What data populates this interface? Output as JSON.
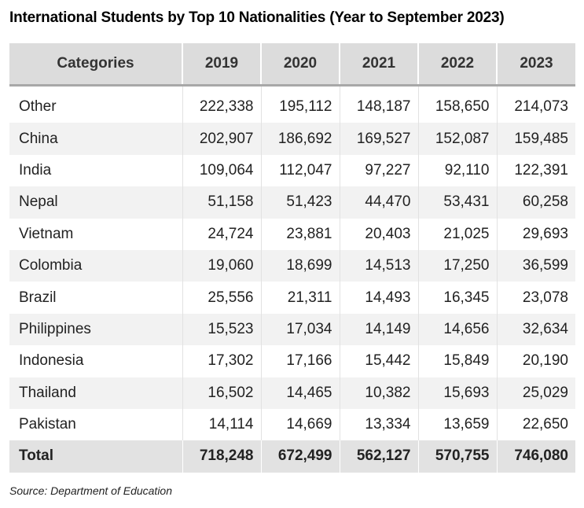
{
  "chart_data": {
    "type": "table",
    "title": "International Students by Top 10 Nationalities (Year to September 2023)",
    "columns": [
      "Categories",
      "2019",
      "2020",
      "2021",
      "2022",
      "2023"
    ],
    "rows": [
      {
        "category": "Other",
        "values": [
          "222,338",
          "195,112",
          "148,187",
          "158,650",
          "214,073"
        ]
      },
      {
        "category": "China",
        "values": [
          "202,907",
          "186,692",
          "169,527",
          "152,087",
          "159,485"
        ]
      },
      {
        "category": "India",
        "values": [
          "109,064",
          "112,047",
          "97,227",
          "92,110",
          "122,391"
        ]
      },
      {
        "category": "Nepal",
        "values": [
          "51,158",
          "51,423",
          "44,470",
          "53,431",
          "60,258"
        ]
      },
      {
        "category": "Vietnam",
        "values": [
          "24,724",
          "23,881",
          "20,403",
          "21,025",
          "29,693"
        ]
      },
      {
        "category": "Colombia",
        "values": [
          "19,060",
          "18,699",
          "14,513",
          "17,250",
          "36,599"
        ]
      },
      {
        "category": "Brazil",
        "values": [
          "25,556",
          "21,311",
          "14,493",
          "16,345",
          "23,078"
        ]
      },
      {
        "category": "Philippines",
        "values": [
          "15,523",
          "17,034",
          "14,149",
          "14,656",
          "32,634"
        ]
      },
      {
        "category": "Indonesia",
        "values": [
          "17,302",
          "17,166",
          "15,442",
          "15,849",
          "20,190"
        ]
      },
      {
        "category": "Thailand",
        "values": [
          "16,502",
          "14,465",
          "10,382",
          "15,693",
          "25,029"
        ]
      },
      {
        "category": "Pakistan",
        "values": [
          "14,114",
          "14,669",
          "13,334",
          "13,659",
          "22,650"
        ]
      }
    ],
    "total": {
      "category": "Total",
      "values": [
        "718,248",
        "672,499",
        "562,127",
        "570,755",
        "746,080"
      ]
    },
    "source": "Source: Department of Education"
  }
}
